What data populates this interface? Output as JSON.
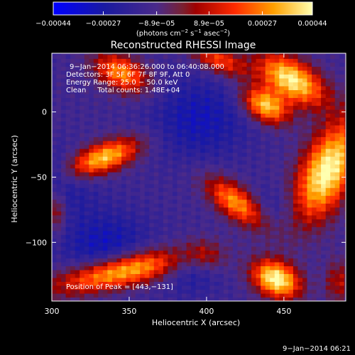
{
  "chart_data": {
    "type": "heatmap",
    "title": "Reconstructed RHESSI Image",
    "xlabel": "Heliocentric X (arcsec)",
    "ylabel": "Heliocentric Y (arcsec)",
    "xlim": [
      300,
      490
    ],
    "ylim": [
      -145,
      45
    ],
    "x_ticks": [
      300,
      350,
      400,
      450
    ],
    "y_ticks": [
      0,
      -50,
      -100
    ],
    "x_tick_labels": [
      "300",
      "350",
      "400",
      "450"
    ],
    "y_tick_labels": [
      "0",
      "−50",
      "−100"
    ],
    "colorbar": {
      "range": [
        -0.00044,
        0.00044
      ],
      "tick_values": [
        -0.00044,
        -0.00027,
        -8.9e-05,
        8.9e-05,
        0.00027,
        0.00044
      ],
      "tick_labels": [
        "−0.00044",
        "−0.00027",
        "−8.9e−05",
        "8.9e−05",
        "0.00027",
        "0.00044"
      ],
      "unit_main": "(photons cm",
      "unit_exp1": "−2",
      "unit_mid": " s",
      "unit_exp2": "−1",
      "unit_end": " asec",
      "unit_exp3": "−2",
      "unit_close": ")"
    },
    "annotations": [
      "9−Jan−2014 06:36:26.000 to 06:40:08.000",
      "Detectors: 3F 5F 6F 7F 8F 9F, Att 0",
      "Energy Range: 25.0 − 50.0 keV",
      "Clean     Total counts: 1.48E+04"
    ],
    "peak_label": "Position of Peak = [443,−131]",
    "sources": [
      {
        "x": 455,
        "y": 25,
        "sx": 18,
        "sy": 10,
        "angle": -40,
        "amp": 0.95
      },
      {
        "x": 438,
        "y": 5,
        "sx": 12,
        "sy": 8,
        "angle": -40,
        "amp": 0.85
      },
      {
        "x": 478,
        "y": -45,
        "sx": 12,
        "sy": 28,
        "angle": -20,
        "amp": 1.0
      },
      {
        "x": 445,
        "y": -128,
        "sx": 12,
        "sy": 9,
        "angle": -40,
        "amp": 1.0
      },
      {
        "x": 420,
        "y": -70,
        "sx": 18,
        "sy": 8,
        "angle": -45,
        "amp": 0.75
      },
      {
        "x": 333,
        "y": -35,
        "sx": 18,
        "sy": 8,
        "angle": 25,
        "amp": 0.85
      },
      {
        "x": 345,
        "y": -122,
        "sx": 30,
        "sy": 9,
        "angle": 15,
        "amp": 0.95
      },
      {
        "x": 345,
        "y": 30,
        "sx": 14,
        "sy": 9,
        "angle": -35,
        "amp": 0.7
      },
      {
        "x": 408,
        "y": 40,
        "sx": 14,
        "sy": 7,
        "angle": -30,
        "amp": 0.55
      },
      {
        "x": 302,
        "y": -75,
        "sx": 5,
        "sy": 12,
        "angle": 0,
        "amp": 0.45
      },
      {
        "x": 485,
        "y": -130,
        "sx": 6,
        "sy": 12,
        "angle": 0,
        "amp": 0.35
      },
      {
        "x": 400,
        "y": -110,
        "sx": 10,
        "sy": 8,
        "angle": -40,
        "amp": 0.3
      }
    ]
  },
  "footer": {
    "date": "9−Jan−2014 06:21"
  },
  "colors": {
    "background": "#000000",
    "text": "#ffffff"
  }
}
